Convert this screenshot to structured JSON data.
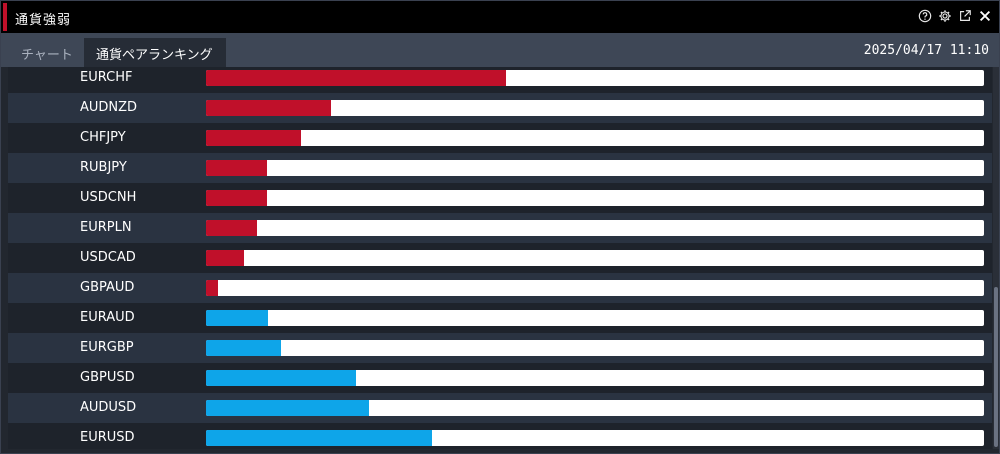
{
  "window": {
    "title": "通貨強弱"
  },
  "title_icons": [
    "help-icon",
    "gear-icon",
    "popout-icon",
    "close-icon"
  ],
  "tabs": [
    {
      "label": "チャート",
      "active": false
    },
    {
      "label": "通貨ペアランキング",
      "active": true
    }
  ],
  "timestamp": "2025/04/17 11:10",
  "colors": {
    "negative": "#c0102a",
    "positive": "#0ea5e9",
    "track": "#ffffff"
  },
  "rows": [
    {
      "pair": "EURCHF",
      "strength": 0.385,
      "direction": "negative"
    },
    {
      "pair": "AUDNZD",
      "strength": 0.161,
      "direction": "negative"
    },
    {
      "pair": "CHFJPY",
      "strength": 0.122,
      "direction": "negative"
    },
    {
      "pair": "RUBJPY",
      "strength": 0.079,
      "direction": "negative"
    },
    {
      "pair": "USDCNH",
      "strength": 0.078,
      "direction": "negative"
    },
    {
      "pair": "EURPLN",
      "strength": 0.066,
      "direction": "negative"
    },
    {
      "pair": "USDCAD",
      "strength": 0.049,
      "direction": "negative"
    },
    {
      "pair": "GBPAUD",
      "strength": 0.016,
      "direction": "negative"
    },
    {
      "pair": "EURAUD",
      "strength": 0.08,
      "direction": "positive"
    },
    {
      "pair": "EURGBP",
      "strength": 0.097,
      "direction": "positive"
    },
    {
      "pair": "GBPUSD",
      "strength": 0.193,
      "direction": "positive"
    },
    {
      "pair": "AUDUSD",
      "strength": 0.209,
      "direction": "positive"
    },
    {
      "pair": "EURUSD",
      "strength": 0.29,
      "direction": "positive"
    }
  ]
}
